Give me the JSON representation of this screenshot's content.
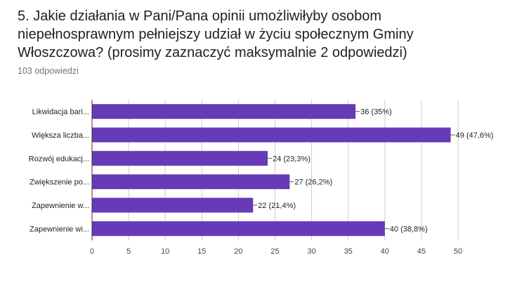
{
  "question": {
    "title": "5. Jakie działania w Pani/Pana opinii umożliwiłyby osobom niepełnosprawnym pełniejszy udział w życiu społecznym Gminy Włoszczowa? (prosimy zaznaczyć maksymalnie 2 odpowiedzi)",
    "response_count": "103 odpowiedzi"
  },
  "chart_data": {
    "type": "bar",
    "orientation": "horizontal",
    "categories": [
      "Likwidacja bari...",
      "Większa liczba...",
      "Rozwój edukacj...",
      "Zwiększenie po...",
      "Zapewnienie w...",
      "Zapewnienie wi..."
    ],
    "values": [
      36,
      49,
      24,
      27,
      22,
      40
    ],
    "data_labels": [
      "36 (35%)",
      "49 (47,6%)",
      "24 (23,3%)",
      "27 (26,2%)",
      "22 (21,4%)",
      "40 (38,8%)"
    ],
    "xlim": [
      0,
      50
    ],
    "xticks": [
      0,
      5,
      10,
      15,
      20,
      25,
      30,
      35,
      40,
      45,
      50
    ],
    "grid": true,
    "bar_color": "#673ab7",
    "grid_color": "#cccccc"
  }
}
